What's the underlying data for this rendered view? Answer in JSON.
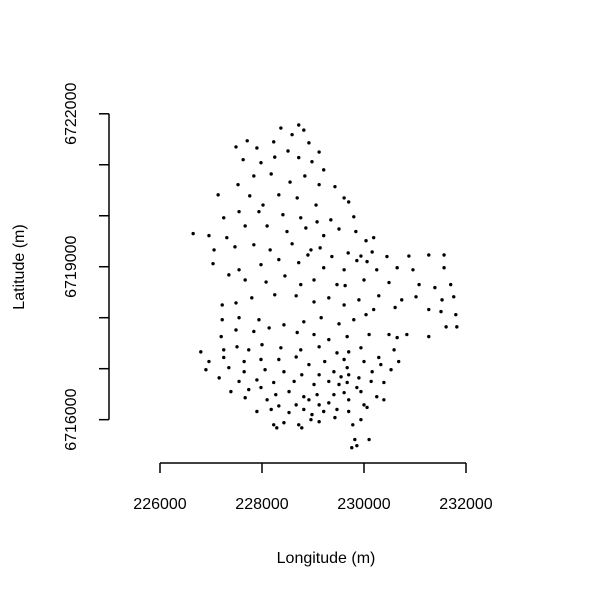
{
  "chart_data": {
    "type": "scatter",
    "xlabel": "Longitude (m)",
    "ylabel": "Latitude (m)",
    "color": "#000000",
    "xlim": [
      225000,
      233000
    ],
    "ylim": [
      6715150,
      6722800
    ],
    "xticks": [
      226000,
      228000,
      230000,
      232000
    ],
    "yticks": [
      6716000,
      6719000,
      6722000
    ],
    "yminorticks": [
      6717000,
      6718000,
      6720000,
      6721000
    ],
    "x": [
      228370,
      228720,
      228820,
      228590,
      228920,
      229120,
      227710,
      227490,
      227900,
      228230,
      228510,
      227630,
      227980,
      228250,
      228720,
      228980,
      229210,
      227840,
      228180,
      228550,
      228840,
      229120,
      229430,
      227140,
      227530,
      227760,
      228020,
      228330,
      228690,
      229060,
      229610,
      227250,
      227550,
      227940,
      228410,
      228760,
      229080,
      229350,
      229800,
      229700,
      226650,
      226960,
      227310,
      227670,
      228100,
      228490,
      228860,
      229210,
      229510,
      229840,
      230040,
      230190,
      227060,
      227470,
      227840,
      228160,
      228590,
      228960,
      229140,
      229370,
      229690,
      229940,
      230060,
      230160,
      230450,
      230880,
      231270,
      231570,
      227040,
      227550,
      227980,
      228330,
      228720,
      228900,
      229210,
      229610,
      229860,
      230250,
      230650,
      230960,
      231570,
      227350,
      227670,
      228080,
      228450,
      228760,
      229020,
      229470,
      229630,
      230000,
      230490,
      231080,
      231390,
      231700,
      227220,
      227490,
      227800,
      228250,
      228670,
      229020,
      229310,
      229610,
      229900,
      230290,
      230740,
      231020,
      231530,
      231760,
      227220,
      227550,
      227940,
      228430,
      228820,
      229160,
      229510,
      229800,
      230040,
      230190,
      230610,
      231270,
      231510,
      231800,
      227200,
      227490,
      227840,
      228140,
      228690,
      229020,
      229310,
      229670,
      230100,
      230490,
      230650,
      230840,
      231270,
      231610,
      231820,
      226800,
      227250,
      227510,
      227740,
      228000,
      228370,
      228760,
      229120,
      229470,
      229700,
      229940,
      230290,
      230590,
      226960,
      227250,
      227650,
      227980,
      228330,
      228670,
      228920,
      229230,
      229610,
      229670,
      230000,
      230330,
      230680,
      226900,
      227350,
      227650,
      228060,
      228430,
      228780,
      229120,
      229410,
      229550,
      229700,
      229900,
      230160,
      230530,
      227160,
      227550,
      227900,
      228230,
      228630,
      229020,
      229310,
      229510,
      229670,
      229860,
      230140,
      230390,
      227390,
      227740,
      227980,
      228270,
      228530,
      228820,
      229080,
      229410,
      229610,
      229940,
      230250,
      227670,
      228100,
      228330,
      228670,
      228920,
      229120,
      229310,
      229700,
      230000,
      230390,
      227900,
      228180,
      228530,
      228820,
      228980,
      229210,
      229470,
      229700,
      230060,
      228230,
      228430,
      228720,
      228960,
      229120,
      229430,
      229780,
      229940,
      228290,
      228780,
      229820,
      230100,
      229860,
      229760
    ],
    "y": [
      6721720,
      6721780,
      6721680,
      6721590,
      6721430,
      6721250,
      6721470,
      6721350,
      6721330,
      6721450,
      6721270,
      6721100,
      6721040,
      6721150,
      6721140,
      6721060,
      6720900,
      6720780,
      6720820,
      6720660,
      6720780,
      6720610,
      6720570,
      6720410,
      6720610,
      6720390,
      6720210,
      6720410,
      6720350,
      6720210,
      6720350,
      6719960,
      6720080,
      6720080,
      6720020,
      6719960,
      6719880,
      6719920,
      6719980,
      6720270,
      6719650,
      6719610,
      6719570,
      6719800,
      6719800,
      6719690,
      6719760,
      6719610,
      6719740,
      6719690,
      6719510,
      6719570,
      6719330,
      6719390,
      6719430,
      6719330,
      6719450,
      6719330,
      6719370,
      6719200,
      6719270,
      6719210,
      6719100,
      6719290,
      6719200,
      6719210,
      6719230,
      6719230,
      6719060,
      6718940,
      6719040,
      6719140,
      6719080,
      6719230,
      6718980,
      6718940,
      6719120,
      6718940,
      6718980,
      6718940,
      6718980,
      6718840,
      6718740,
      6718700,
      6718820,
      6718650,
      6718740,
      6718650,
      6718630,
      6718740,
      6718690,
      6718650,
      6718590,
      6718650,
      6718250,
      6718290,
      6718390,
      6718450,
      6718430,
      6718310,
      6718390,
      6718250,
      6718350,
      6718430,
      6718350,
      6718410,
      6718350,
      6718410,
      6717960,
      6718000,
      6717960,
      6717860,
      6717920,
      6718000,
      6717880,
      6717960,
      6718060,
      6718160,
      6718200,
      6718160,
      6718120,
      6718060,
      6717630,
      6717760,
      6717730,
      6717800,
      6717710,
      6717670,
      6717570,
      6717630,
      6717670,
      6717670,
      6717610,
      6717670,
      6717630,
      6717820,
      6717820,
      6717330,
      6717370,
      6717430,
      6717370,
      6717470,
      6717410,
      6717370,
      6717430,
      6717310,
      6717330,
      6717410,
      6717220,
      6717370,
      6717140,
      6717220,
      6717140,
      6717180,
      6717180,
      6717230,
      6717080,
      6717140,
      6717180,
      6717020,
      6717140,
      6717080,
      6717140,
      6716980,
      6717020,
      6716940,
      6716980,
      6716940,
      6716880,
      6716880,
      6716940,
      6716840,
      6716880,
      6716820,
      6716940,
      6716980,
      6716820,
      6716750,
      6716780,
      6716730,
      6716750,
      6716690,
      6716750,
      6716690,
      6716730,
      6716630,
      6716750,
      6716730,
      6716550,
      6716590,
      6716630,
      6716490,
      6716550,
      6716450,
      6716490,
      6716490,
      6716530,
      6716550,
      6716450,
      6716430,
      6716390,
      6716270,
      6716290,
      6716390,
      6716290,
      6716330,
      6716390,
      6716290,
      6716390,
      6716160,
      6716200,
      6716140,
      6716200,
      6716100,
      6716160,
      6716200,
      6716160,
      6716240,
      6715900,
      6715940,
      6715900,
      6716000,
      6715960,
      6716040,
      6715900,
      6716000,
      6715840,
      6715840,
      6715610,
      6715610,
      6715490,
      6715450
    ]
  }
}
